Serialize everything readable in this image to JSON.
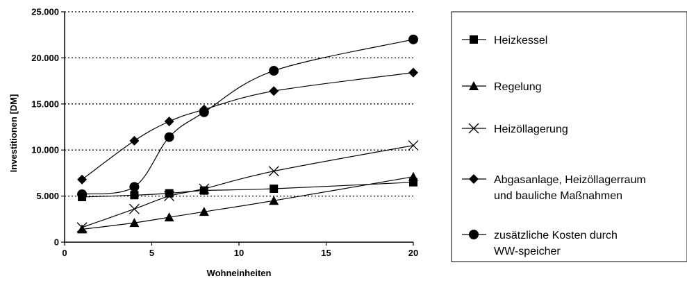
{
  "chart_data": {
    "type": "line",
    "title": "",
    "xlabel": "Wohneinheiten",
    "ylabel": "Investitionen [DM]",
    "xlim": [
      0,
      20
    ],
    "ylim": [
      0,
      25000
    ],
    "x_ticks": [
      0,
      5,
      10,
      15,
      20
    ],
    "x_tick_labels": [
      "0",
      "5",
      "10",
      "15",
      "20"
    ],
    "y_ticks": [
      0,
      5000,
      10000,
      15000,
      20000,
      25000
    ],
    "y_tick_labels": [
      "0",
      "5.000",
      "10.000",
      "15.000",
      "20.000",
      "25.000"
    ],
    "grid": "horizontal-dotted",
    "legend_position": "right",
    "x": [
      1,
      4,
      6,
      8,
      12,
      20
    ],
    "series": [
      {
        "name": "Heizkessel",
        "marker": "square",
        "values": [
          4900,
          5100,
          5300,
          5600,
          5800,
          6500
        ]
      },
      {
        "name": "Regelung",
        "marker": "triangle",
        "values": [
          1400,
          2100,
          2700,
          3300,
          4500,
          7100
        ]
      },
      {
        "name": "Heizöllagerung",
        "marker": "cross",
        "values": [
          1600,
          3600,
          5000,
          5800,
          7700,
          10500
        ]
      },
      {
        "name": "Abgasanlage, Heizöllagerraum und bauliche Maßnahmen",
        "marker": "diamond",
        "values": [
          6800,
          11000,
          13100,
          14400,
          16400,
          18400
        ]
      },
      {
        "name": "zusätzliche Kosten durch WW-speicher",
        "marker": "circle",
        "values": [
          5200,
          6000,
          11400,
          14100,
          18600,
          22000
        ]
      }
    ]
  }
}
